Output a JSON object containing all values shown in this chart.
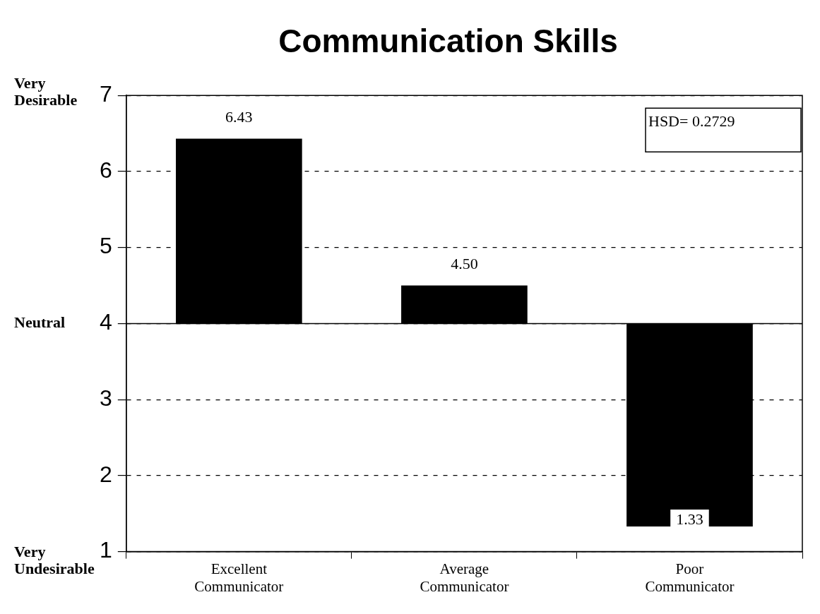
{
  "chart_data": {
    "type": "bar",
    "title": "Communication Skills",
    "categories": [
      "Excellent Communicator",
      "Average Communicator",
      "Poor Communicator"
    ],
    "base": [
      4,
      4,
      4
    ],
    "values": [
      2.43,
      0.5,
      -2.67
    ],
    "value_labels": [
      "6.43",
      "4.50",
      "1.33"
    ],
    "color": "#000000",
    "ylim": [
      1,
      7
    ],
    "yticks": [
      1,
      2,
      3,
      4,
      5,
      6,
      7
    ],
    "grid": "y",
    "line_style": "dashed",
    "ref_lines": [
      {
        "axis": "y",
        "value": 4,
        "label": "Neutral"
      }
    ],
    "annotations": [
      "HSD= 0.2729",
      "Very Desirable",
      "Very Undesirable"
    ],
    "legend": false
  }
}
